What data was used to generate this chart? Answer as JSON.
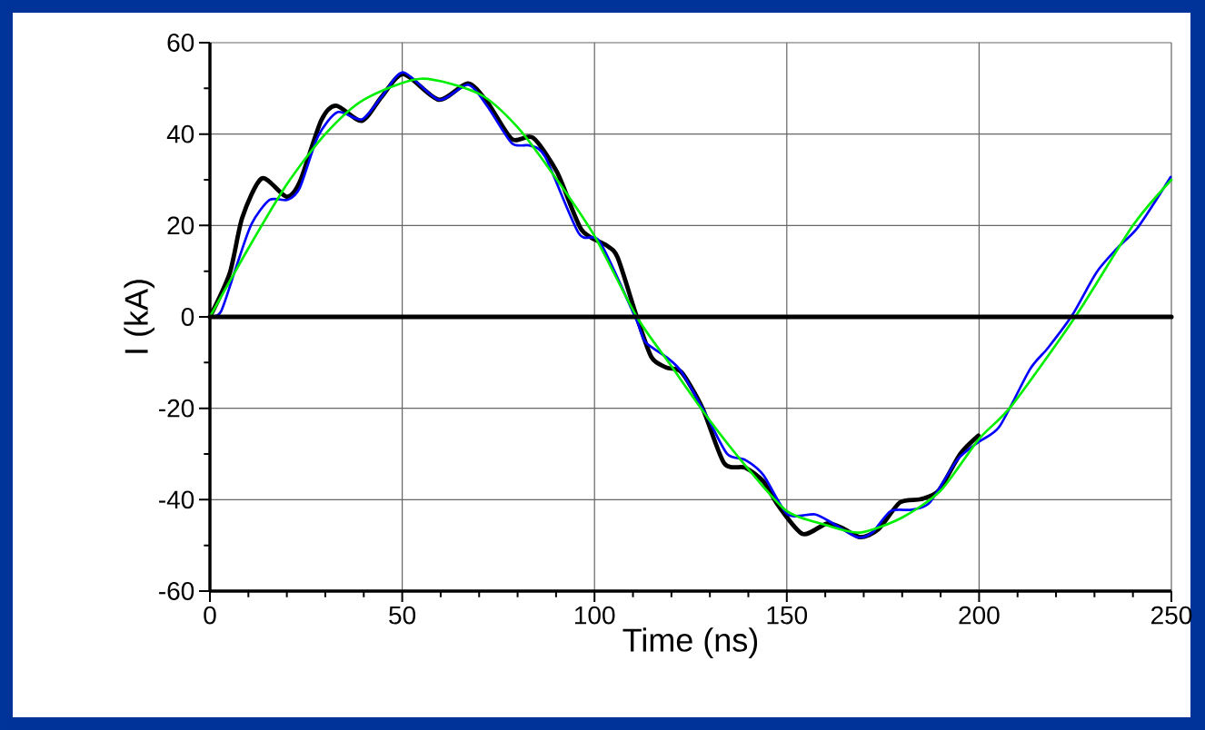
{
  "chart_data": {
    "type": "line",
    "xlabel": "Time (ns)",
    "ylabel": "I (kA)",
    "xlim": [
      0,
      250
    ],
    "ylim": [
      -60,
      60
    ],
    "xticks": [
      0,
      50,
      100,
      150,
      200,
      250
    ],
    "yticks": [
      -60,
      -40,
      -20,
      0,
      20,
      40,
      60
    ],
    "grid": true,
    "marker": "none",
    "line_style": "solid",
    "ref_lines": [
      {
        "axis": "y",
        "value": 0,
        "color": "#000000"
      }
    ],
    "series": [
      {
        "color": "#000000",
        "x": [
          0,
          5.2,
          8.4,
          13.5,
          19.9,
          23.4,
          28.9,
          32.8,
          39.5,
          44.7,
          50.3,
          59.5,
          67.1,
          72.2,
          78.5,
          84,
          90.3,
          96.6,
          103,
          106,
          110.8,
          114.8,
          118.7,
          122.6,
          128.1,
          133.7,
          139.2,
          143.9,
          147.8,
          154.1,
          160.4,
          164.4,
          169.1,
          173.8,
          179.4,
          184.8,
          189.5,
          195.1,
          199.8
        ],
        "values": [
          0,
          9.7,
          21.7,
          30.3,
          26.3,
          29.6,
          42.9,
          46.2,
          42.9,
          48.2,
          53.1,
          47.5,
          51.1,
          46.9,
          38.9,
          39.2,
          31.6,
          19.1,
          15.7,
          13,
          0.5,
          -8.8,
          -11.1,
          -12.1,
          -20,
          -32,
          -33,
          -36,
          -41.3,
          -47.5,
          -45.2,
          -46.2,
          -48.2,
          -46.5,
          -40.6,
          -39.9,
          -38,
          -30,
          -26
        ]
      },
      {
        "color": "#0000ff",
        "x": [
          0,
          2.9,
          6.9,
          10.8,
          15.5,
          20.2,
          23.4,
          28.1,
          33.2,
          39.5,
          44.7,
          50.3,
          59.5,
          67.1,
          72.2,
          78.5,
          83.2,
          87.2,
          95.9,
          101.4,
          110.8,
          113.2,
          118.7,
          122.6,
          129,
          134.5,
          139.2,
          143.9,
          150.2,
          157.3,
          162,
          168.3,
          172.2,
          177,
          182.5,
          187.2,
          194.3,
          199.8,
          205.3,
          213.2,
          217.9,
          224.3,
          230.5,
          235.9,
          241.4,
          249.8
        ],
        "values": [
          0,
          1.2,
          11.1,
          20.3,
          25.6,
          25.6,
          28.3,
          39.5,
          44.8,
          43.2,
          48.2,
          53.5,
          47.5,
          50.8,
          46,
          38,
          37.5,
          35,
          18.3,
          16.4,
          -0.5,
          -5.5,
          -8.8,
          -12,
          -21.4,
          -30,
          -31.3,
          -34.6,
          -43.2,
          -43.2,
          -45.2,
          -48.2,
          -47.2,
          -42.5,
          -42.2,
          -40.6,
          -31.3,
          -27.4,
          -24,
          -11.5,
          -6.8,
          0.5,
          9.7,
          15,
          19.7,
          30.6
        ]
      },
      {
        "color": "#00ee00",
        "x": [
          0,
          10,
          20,
          30,
          40,
          54.8,
          70,
          80,
          90,
          100,
          111,
          120,
          130,
          140,
          150,
          160,
          169.1,
          180,
          190,
          200,
          208.5,
          225,
          240,
          250
        ],
        "values": [
          0,
          15,
          29,
          40,
          47.5,
          52.1,
          48.8,
          41.5,
          30.3,
          17.7,
          0,
          -10.8,
          -22.7,
          -33.3,
          -42.5,
          -45.5,
          -47.2,
          -43.9,
          -38,
          -26.7,
          -19.4,
          0,
          20,
          30
        ]
      }
    ]
  }
}
